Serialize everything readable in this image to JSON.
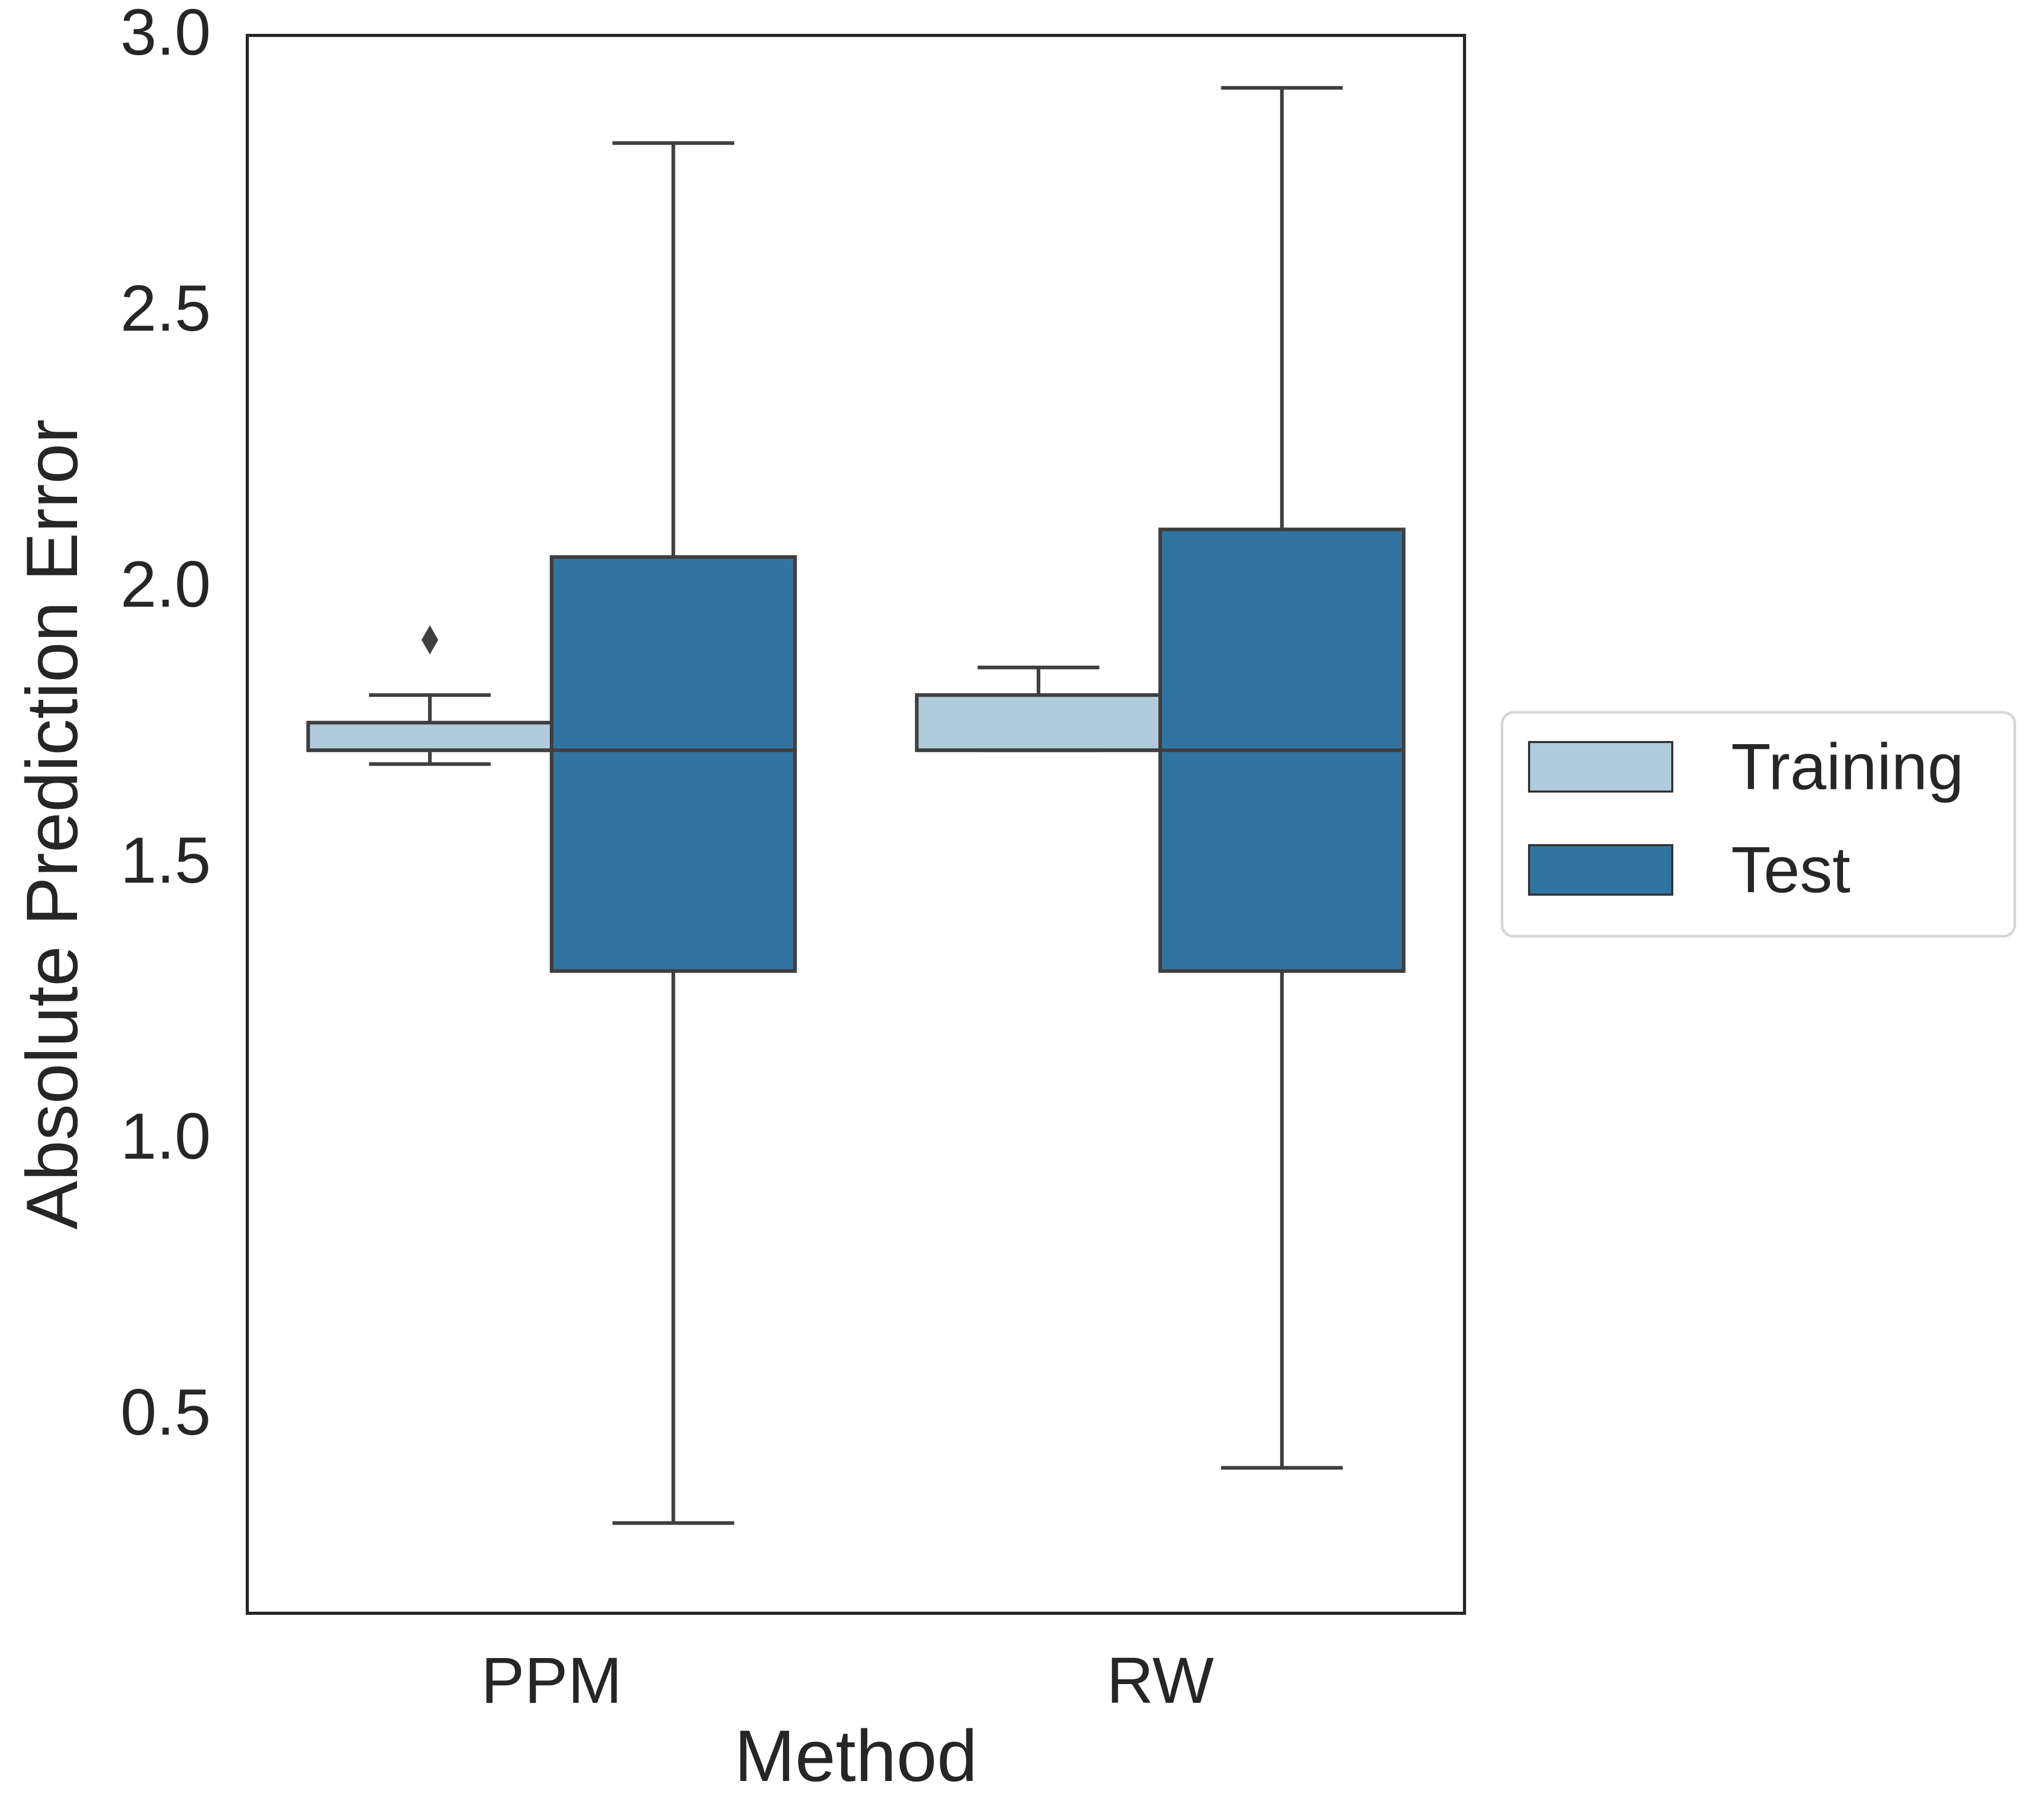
{
  "chart_data": {
    "type": "box",
    "xlabel": "Method",
    "ylabel": "Absolute Prediction Error",
    "categories": [
      "PPM",
      "RW"
    ],
    "ylim": [
      0.17,
      3.0
    ],
    "yticks": [
      {
        "value": 0.5,
        "label": "0.5"
      },
      {
        "value": 1.0,
        "label": "1.0"
      },
      {
        "value": 1.5,
        "label": "1.5"
      },
      {
        "value": 2.0,
        "label": "2.0"
      },
      {
        "value": 2.5,
        "label": "2.5"
      },
      {
        "value": 3.0,
        "label": "3.0"
      }
    ],
    "grid": false,
    "legend_position": "center-right, outside plot",
    "series": [
      {
        "name": "Training",
        "color": "#afcbdd",
        "boxes": [
          {
            "category": "PPM",
            "whislo": 1.675,
            "q1": 1.7,
            "median": 1.7,
            "q3": 1.75,
            "whishi": 1.8,
            "fliers": [
              1.9
            ]
          },
          {
            "category": "RW",
            "whislo": 1.7,
            "q1": 1.7,
            "median": 1.7,
            "q3": 1.8,
            "whishi": 1.85,
            "fliers": []
          }
        ]
      },
      {
        "name": "Test",
        "color": "#3274a1",
        "boxes": [
          {
            "category": "PPM",
            "whislo": 0.3,
            "q1": 1.3,
            "median": 1.7,
            "q3": 2.05,
            "whishi": 2.8,
            "fliers": []
          },
          {
            "category": "RW",
            "whislo": 0.4,
            "q1": 1.3,
            "median": 1.7,
            "q3": 2.1,
            "whishi": 2.9,
            "fliers": []
          }
        ]
      }
    ]
  }
}
